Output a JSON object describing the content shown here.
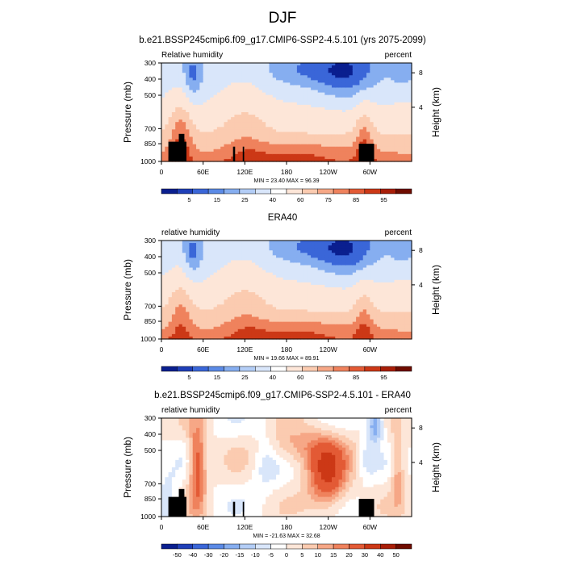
{
  "figure": {
    "title": "DJF"
  },
  "chart_data": [
    {
      "type": "heatmap",
      "title": "b.e21.BSSP245cmip6.f09_g17.CMIP6-SSP2-4.5.101 (yrs 2075-2099)",
      "left_label": "Relative humidity",
      "right_label": "percent",
      "ylabel": "Pressure (mb)",
      "y2label": "Height (km)",
      "x_ticks": [
        "0",
        "60E",
        "120E",
        "180",
        "120W",
        "60W"
      ],
      "y_ticks": [
        "300",
        "400",
        "500",
        "700",
        "850",
        "1000"
      ],
      "y2_ticks": [
        "8",
        "4"
      ],
      "minmax": "MIN = 23.40  MAX = 96.39",
      "colorbar_labels": [
        "5",
        "15",
        "25",
        "40",
        "60",
        "75",
        "85",
        "95"
      ],
      "palette": [
        "#0a1f8f",
        "#1f3fb8",
        "#3a66d8",
        "#5b8ae6",
        "#86aef0",
        "#b3cdf6",
        "#d9e6fa",
        "#ffffff",
        "#fde6d8",
        "#fbcbb0",
        "#f6a786",
        "#ef825d",
        "#e35a35",
        "#cc3816",
        "#a81e08",
        "#6f0c00"
      ],
      "min": 23.4,
      "max": 96.39,
      "has_topography": true
    },
    {
      "type": "heatmap",
      "title": "ERA40",
      "left_label": "relative humidity",
      "right_label": "percent",
      "ylabel": "Pressure (mb)",
      "y2label": "Height (km)",
      "x_ticks": [
        "0",
        "60E",
        "120E",
        "180",
        "120W",
        "60W"
      ],
      "y_ticks": [
        "300",
        "400",
        "500",
        "700",
        "850",
        "1000"
      ],
      "y2_ticks": [
        "8",
        "4"
      ],
      "minmax": "MIN = 19.66  MAX = 89.91",
      "colorbar_labels": [
        "5",
        "15",
        "25",
        "40",
        "60",
        "75",
        "85",
        "95"
      ],
      "palette": [
        "#0a1f8f",
        "#1f3fb8",
        "#3a66d8",
        "#5b8ae6",
        "#86aef0",
        "#b3cdf6",
        "#d9e6fa",
        "#ffffff",
        "#fde6d8",
        "#fbcbb0",
        "#f6a786",
        "#ef825d",
        "#e35a35",
        "#cc3816",
        "#a81e08",
        "#6f0c00"
      ],
      "min": 19.66,
      "max": 89.91,
      "has_topography": false
    },
    {
      "type": "heatmap",
      "title": "b.e21.BSSP245cmip6.f09_g17.CMIP6-SSP2-4.5.101 - ERA40",
      "left_label": "relative humidity",
      "right_label": "percent",
      "ylabel": "Pressure (mb)",
      "y2label": "Height (km)",
      "x_ticks": [
        "0",
        "60E",
        "120E",
        "180",
        "120W",
        "60W"
      ],
      "y_ticks": [
        "300",
        "400",
        "500",
        "700",
        "850",
        "1000"
      ],
      "y2_ticks": [
        "8",
        "4"
      ],
      "minmax": "MIN = -21.63  MAX = 32.68",
      "colorbar_labels": [
        "-50",
        "-40",
        "-30",
        "-20",
        "-15",
        "-10",
        "-5",
        "0",
        "5",
        "10",
        "15",
        "20",
        "30",
        "40",
        "50"
      ],
      "palette": [
        "#0a1f8f",
        "#1f3fb8",
        "#3a66d8",
        "#5b8ae6",
        "#86aef0",
        "#b3cdf6",
        "#d9e6fa",
        "#ffffff",
        "#fde6d8",
        "#fbcbb0",
        "#f6a786",
        "#ef825d",
        "#e35a35",
        "#cc3816",
        "#a81e08",
        "#6f0c00"
      ],
      "min": -21.63,
      "max": 32.68,
      "has_topography": true
    }
  ]
}
